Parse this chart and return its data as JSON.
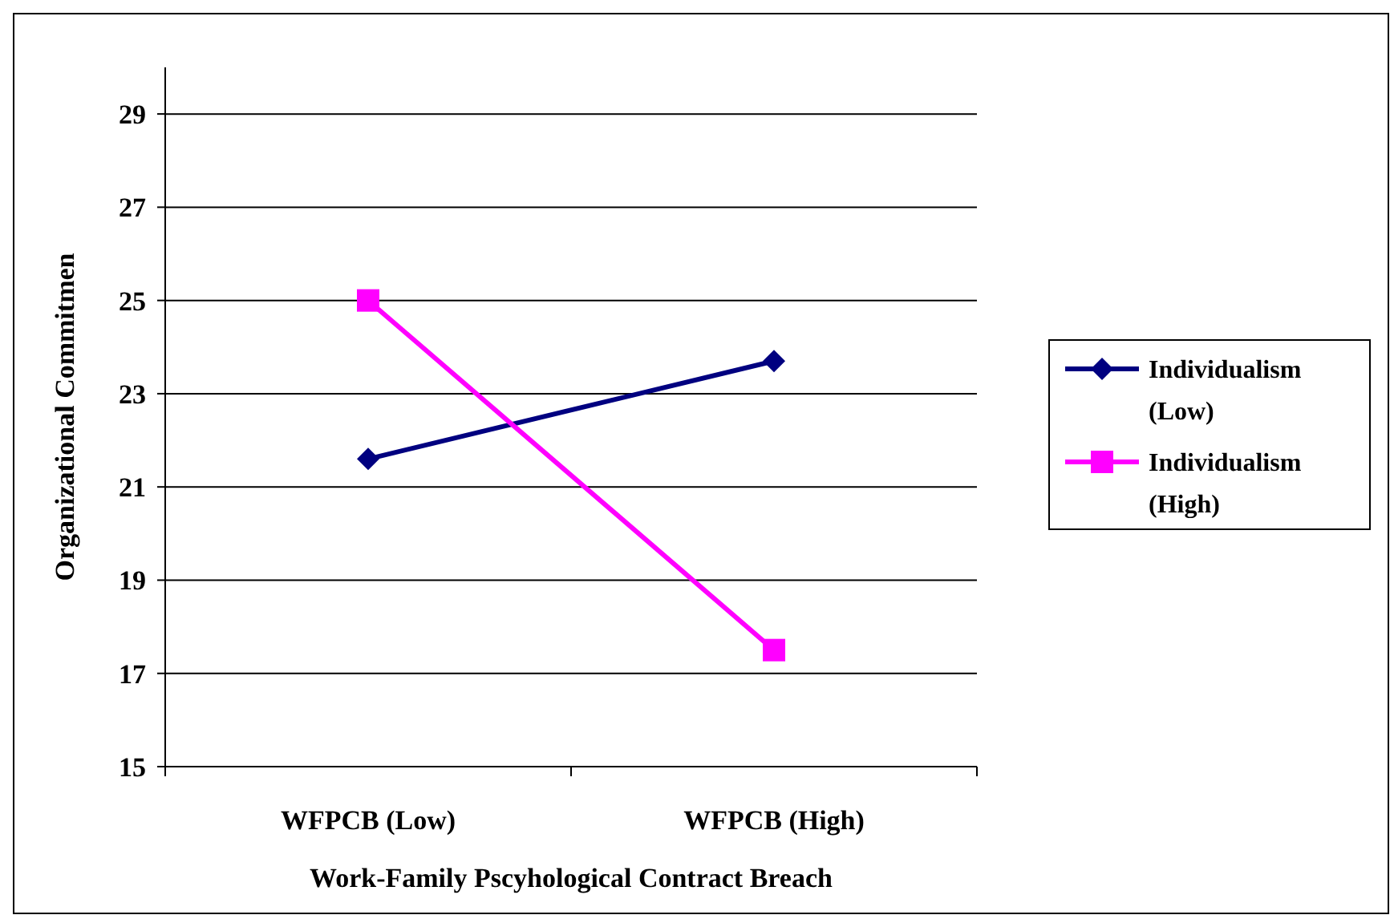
{
  "chart_data": {
    "type": "line",
    "xlabel": "Work-Family Pscyhological Contract Breach",
    "ylabel": "Organizational Commitmen",
    "categories": [
      "WFPCB (Low)",
      "WFPCB (High)"
    ],
    "series": [
      {
        "name": "Individualism (Low)",
        "color": "#000080",
        "values": [
          21.6,
          23.7
        ],
        "marker": "diamond"
      },
      {
        "name": "Individualism (High)",
        "color": "#ff00ff",
        "values": [
          25.0,
          17.5
        ],
        "marker": "square"
      }
    ],
    "ylim": [
      15,
      30
    ],
    "yticks": [
      15,
      17,
      19,
      21,
      23,
      25,
      27,
      29
    ],
    "grid": "y",
    "legend": "right",
    "line_style": "solid"
  }
}
